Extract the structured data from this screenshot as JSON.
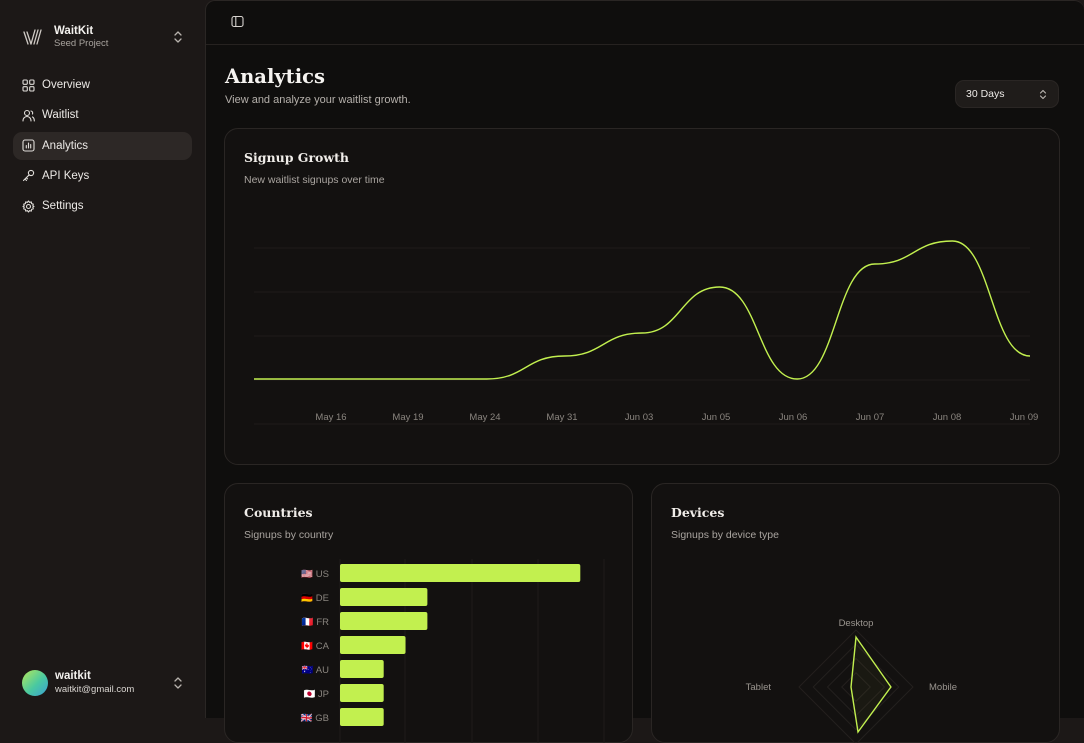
{
  "sidebar": {
    "team": {
      "name": "WaitKit",
      "subtitle": "Seed Project",
      "logo_icon": "waitkit-logo"
    },
    "items": [
      {
        "label": "Overview",
        "icon": "grid-icon"
      },
      {
        "label": "Waitlist",
        "icon": "users-icon"
      },
      {
        "label": "Analytics",
        "icon": "chart-icon",
        "active": true
      },
      {
        "label": "API Keys",
        "icon": "key-icon"
      },
      {
        "label": "Settings",
        "icon": "gear-icon"
      }
    ],
    "user": {
      "name": "waitkit",
      "email": "waitkit@gmail.com"
    }
  },
  "header": {
    "title": "Analytics",
    "subtitle": "View and analyze your waitlist growth.",
    "range": {
      "selected": "30 Days"
    }
  },
  "cards": {
    "growth": {
      "title": "Signup Growth",
      "subtitle": "New waitlist signups over time"
    },
    "countries": {
      "title": "Countries",
      "subtitle": "Signups by country"
    },
    "devices": {
      "title": "Devices",
      "subtitle": "Signups by device type"
    }
  },
  "colors": {
    "accent": "#c2f04f",
    "background": "#0f0e0d",
    "sidebar": "#1c1817",
    "card": "#131110"
  },
  "chart_data": [
    {
      "type": "line",
      "title": "Signup Growth",
      "x": [
        "",
        "May 16",
        "May 19",
        "May 24",
        "May 31",
        "Jun 03",
        "Jun 05",
        "Jun 06",
        "Jun 07",
        "Jun 08",
        "Jun 09"
      ],
      "x_ticks": [
        "May 16",
        "May 19",
        "May 24",
        "May 31",
        "Jun 03",
        "Jun 05",
        "Jun 06",
        "Jun 07",
        "Jun 08",
        "Jun 09"
      ],
      "series": [
        {
          "values": [
            0,
            0,
            0,
            0,
            1,
            2,
            4,
            0,
            5,
            6,
            1
          ]
        }
      ],
      "ylim": [
        0,
        6
      ],
      "grid": true,
      "color": "#c2f04f"
    },
    {
      "type": "bar",
      "orientation": "horizontal",
      "title": "Countries",
      "categories": [
        "US",
        "DE",
        "FR",
        "CA",
        "AU",
        "JP",
        "GB"
      ],
      "flags": [
        "🇺🇸",
        "🇩🇪",
        "🇫🇷",
        "🇨🇦",
        "🇦🇺",
        "🇯🇵",
        "🇬🇧"
      ],
      "values": [
        11,
        4,
        4,
        3,
        2,
        2,
        2
      ],
      "xlim": [
        0,
        12
      ],
      "grid": true,
      "color": "#c2f04f"
    },
    {
      "type": "radar",
      "title": "Devices",
      "categories": [
        "Desktop",
        "Mobile",
        "Tablet"
      ],
      "values": [
        10,
        7,
        1
      ],
      "max": 12,
      "color": "#c2f04f"
    }
  ]
}
